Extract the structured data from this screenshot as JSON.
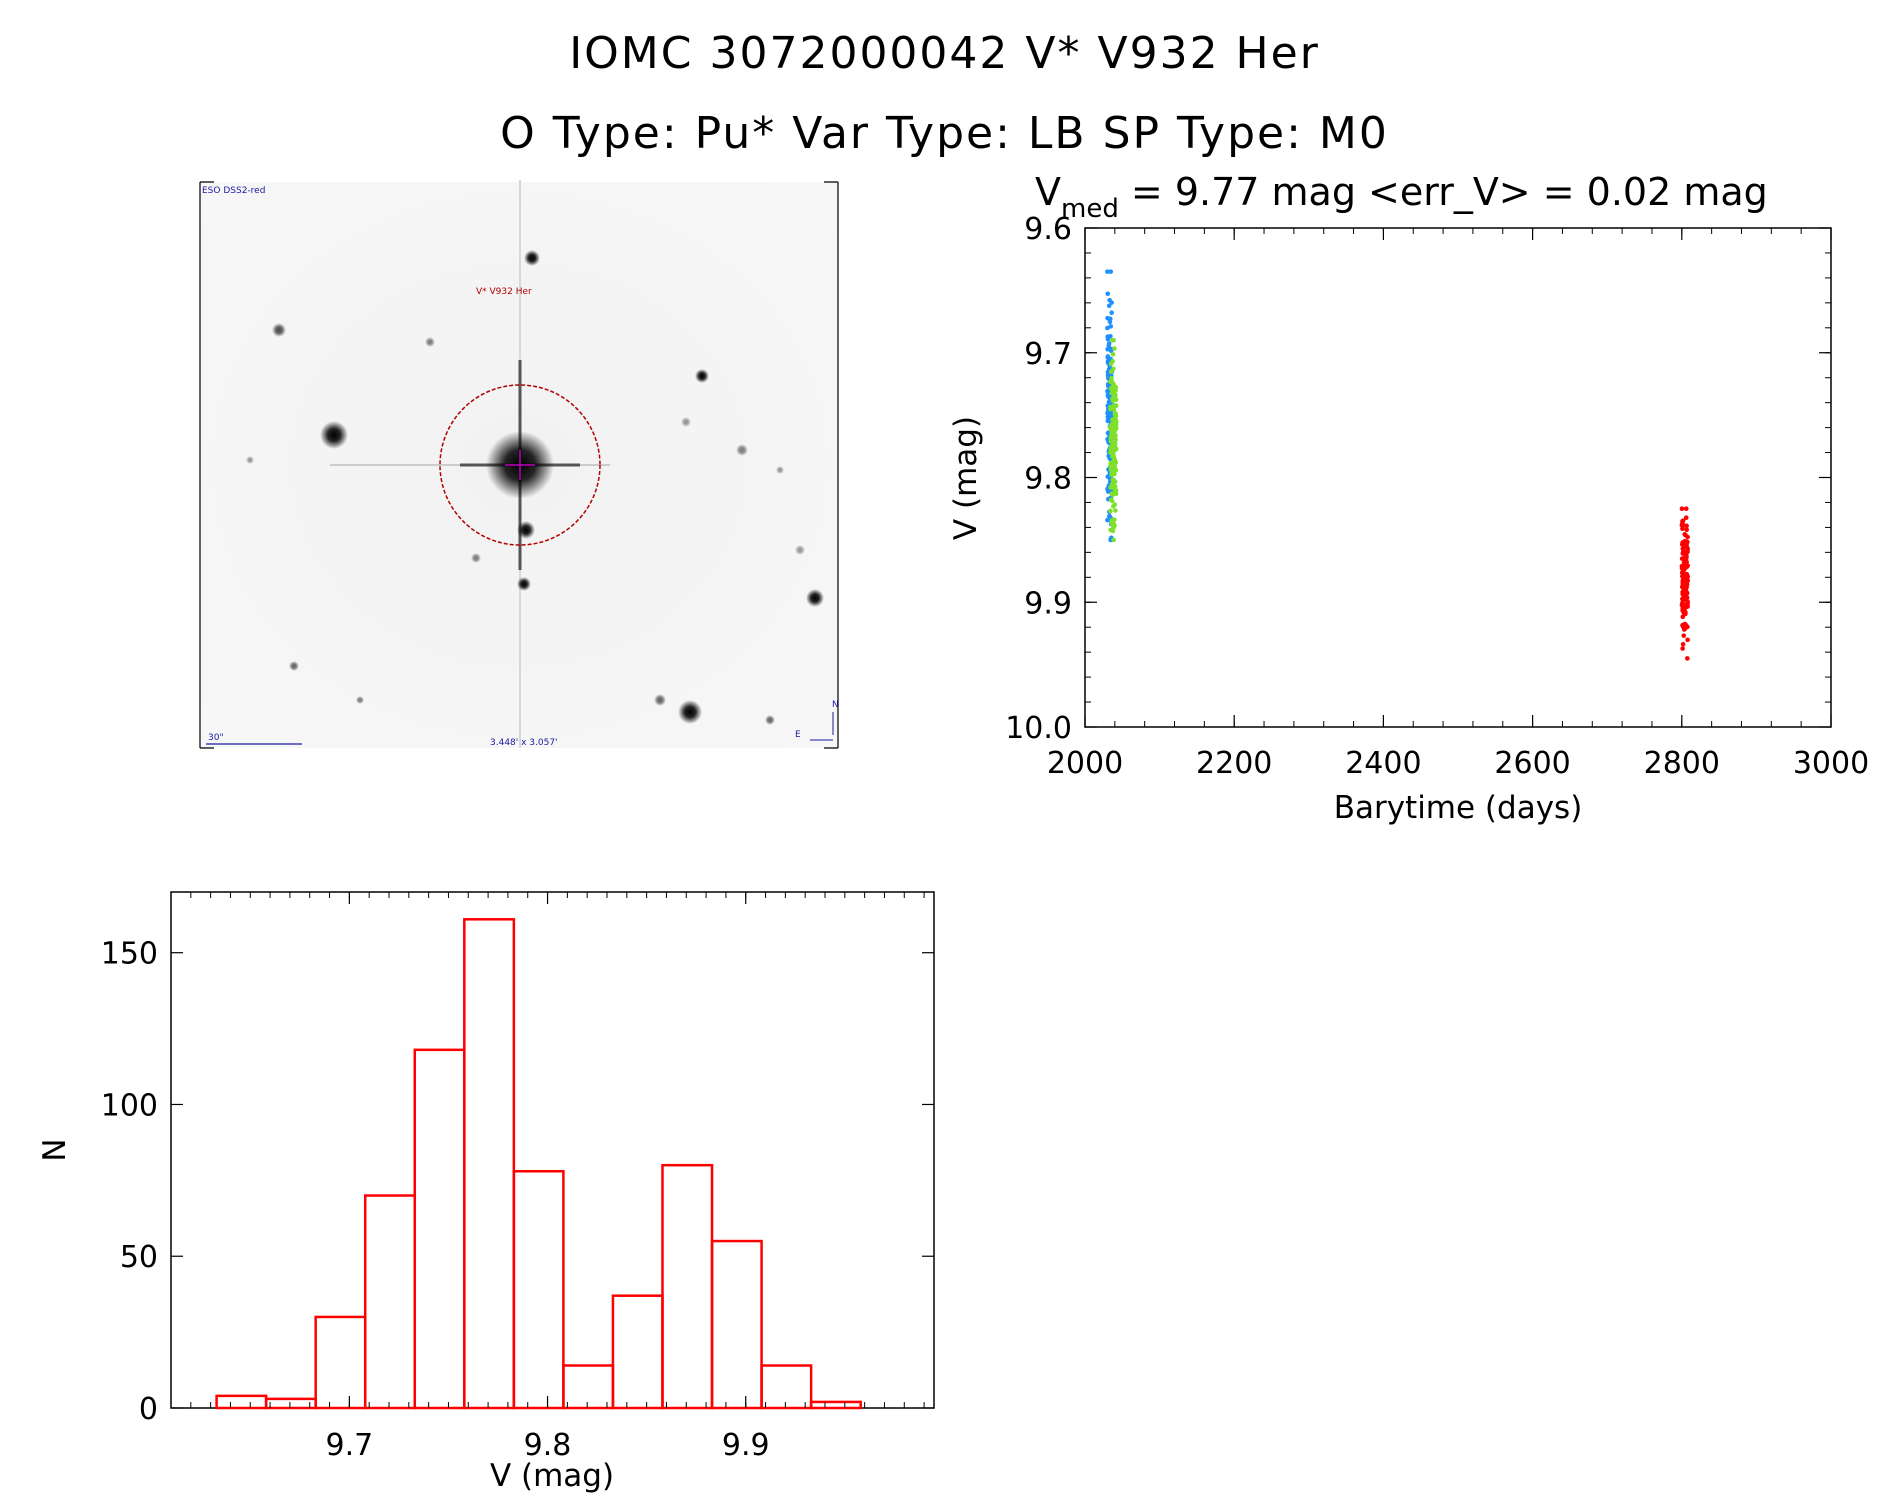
{
  "header": {
    "line1": "IOMC 3072000042    V* V932 Her",
    "line2": "O Type: Pu*   Var Type: LB   SP Type: M0"
  },
  "image_panel": {
    "survey_label": "ESO DSS2-red",
    "target_label": "V* V932 Her",
    "scale_label": "30\"",
    "size_label": "3.448' x 3.057'",
    "north_label": "N",
    "east_label": "E"
  },
  "chart_data": [
    {
      "type": "scatter",
      "title_main": "V",
      "title_sub": "med",
      "title_rest": " = 9.77 mag <err_V> = 0.02 mag",
      "xlabel": "Barytime (days)",
      "ylabel": "V (mag)",
      "xlim": [
        2000,
        3000
      ],
      "ylim": [
        10.0,
        9.6
      ],
      "x_ticks": [
        2000,
        2200,
        2400,
        2600,
        2800,
        3000
      ],
      "y_ticks": [
        "9.6",
        "9.7",
        "9.8",
        "9.9",
        "10.0"
      ],
      "series": [
        {
          "color": "#1e90ff",
          "x_range": [
            2030,
            2036
          ],
          "y_range": [
            9.635,
            9.85
          ],
          "y_center": 9.755,
          "count": 180
        },
        {
          "color": "#7fe02a",
          "x_range": [
            2034,
            2042
          ],
          "y_range": [
            9.69,
            9.85
          ],
          "y_center": 9.77,
          "count": 150
        },
        {
          "color": "#ff0000",
          "x_range": [
            2800,
            2808
          ],
          "y_range": [
            9.825,
            9.945
          ],
          "y_center": 9.88,
          "count": 170
        }
      ]
    },
    {
      "type": "bar",
      "xlabel": "V (mag)",
      "ylabel": "N",
      "xlim": [
        9.61,
        9.995
      ],
      "ylim": [
        0,
        170
      ],
      "x_ticks": [
        "9.7",
        "9.8",
        "9.9"
      ],
      "y_ticks": [
        "0",
        "50",
        "100",
        "150"
      ],
      "bin_width": 0.025,
      "bin_starts": [
        9.633,
        9.658,
        9.683,
        9.708,
        9.733,
        9.758,
        9.783,
        9.808,
        9.833,
        9.858,
        9.883,
        9.908,
        9.933
      ],
      "values": [
        4,
        3,
        30,
        70,
        118,
        161,
        78,
        14,
        37,
        80,
        55,
        14,
        2
      ],
      "color": "#ff0000"
    }
  ]
}
